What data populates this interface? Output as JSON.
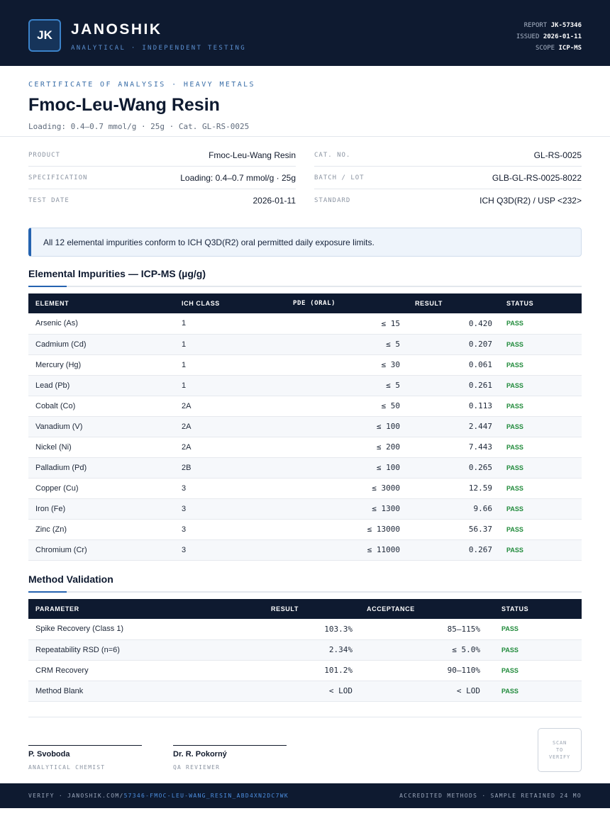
{
  "header": {
    "logo": "JK",
    "brand": "JANOSHIK",
    "tagline": "ANALYTICAL · INDEPENDENT TESTING",
    "report_label": "REPORT",
    "report_value": "JK-57346",
    "issued_label": "ISSUED",
    "issued_value": "2026-01-11",
    "scope_label": "SCOPE",
    "scope_value": "ICP-MS"
  },
  "doc": {
    "eyebrow": "CERTIFICATE OF ANALYSIS · HEAVY METALS",
    "title": "Fmoc-Leu-Wang Resin",
    "subtitle": "Loading: 0.4–0.7 mmol/g · 25g  ·  Cat. GL-RS-0025"
  },
  "info": {
    "product_label": "PRODUCT",
    "product_value": "Fmoc-Leu-Wang Resin",
    "spec_label": "SPECIFICATION",
    "spec_value": "Loading: 0.4–0.7 mmol/g · 25g",
    "date_label": "TEST DATE",
    "date_value": "2026-01-11",
    "cat_label": "CAT. NO.",
    "cat_value": "GL-RS-0025",
    "batch_label": "BATCH / LOT",
    "batch_value": "GLB-GL-RS-0025-8022",
    "standard_label": "STANDARD",
    "standard_value": "ICH Q3D(R2) / USP <232>"
  },
  "notice": "All 12 elemental impurities conform to ICH Q3D(R2) oral permitted daily exposure limits.",
  "impurities": {
    "title": "Elemental Impurities — ICP-MS (µg/g)",
    "headers": [
      "ELEMENT",
      "ICH CLASS",
      "PDE (ORAL)",
      "RESULT",
      "STATUS"
    ],
    "rows": [
      {
        "element": "Arsenic (As)",
        "class": "1",
        "pde": "≤ 15",
        "result": "0.420",
        "status": "PASS"
      },
      {
        "element": "Cadmium (Cd)",
        "class": "1",
        "pde": "≤ 5",
        "result": "0.207",
        "status": "PASS"
      },
      {
        "element": "Mercury (Hg)",
        "class": "1",
        "pde": "≤ 30",
        "result": "0.061",
        "status": "PASS"
      },
      {
        "element": "Lead (Pb)",
        "class": "1",
        "pde": "≤ 5",
        "result": "0.261",
        "status": "PASS"
      },
      {
        "element": "Cobalt (Co)",
        "class": "2A",
        "pde": "≤ 50",
        "result": "0.113",
        "status": "PASS"
      },
      {
        "element": "Vanadium (V)",
        "class": "2A",
        "pde": "≤ 100",
        "result": "2.447",
        "status": "PASS"
      },
      {
        "element": "Nickel (Ni)",
        "class": "2A",
        "pde": "≤ 200",
        "result": "7.443",
        "status": "PASS"
      },
      {
        "element": "Palladium (Pd)",
        "class": "2B",
        "pde": "≤ 100",
        "result": "0.265",
        "status": "PASS"
      },
      {
        "element": "Copper (Cu)",
        "class": "3",
        "pde": "≤ 3000",
        "result": "12.59",
        "status": "PASS"
      },
      {
        "element": "Iron (Fe)",
        "class": "3",
        "pde": "≤ 1300",
        "result": "9.66",
        "status": "PASS"
      },
      {
        "element": "Zinc (Zn)",
        "class": "3",
        "pde": "≤ 13000",
        "result": "56.37",
        "status": "PASS"
      },
      {
        "element": "Chromium (Cr)",
        "class": "3",
        "pde": "≤ 11000",
        "result": "0.267",
        "status": "PASS"
      }
    ]
  },
  "validation": {
    "title": "Method Validation",
    "headers": [
      "PARAMETER",
      "RESULT",
      "ACCEPTANCE",
      "STATUS"
    ],
    "rows": [
      {
        "parameter": "Spike Recovery (Class 1)",
        "result": "103.3%",
        "acceptance": "85–115%",
        "status": "PASS"
      },
      {
        "parameter": "Repeatability RSD (n=6)",
        "result": "2.34%",
        "acceptance": "≤ 5.0%",
        "status": "PASS"
      },
      {
        "parameter": "CRM Recovery",
        "result": "101.2%",
        "acceptance": "90–110%",
        "status": "PASS"
      },
      {
        "parameter": "Method Blank",
        "result": "< LOD",
        "acceptance": "< LOD",
        "status": "PASS"
      }
    ]
  },
  "signatures": [
    {
      "name": "P. Svoboda",
      "role": "ANALYTICAL CHEMIST"
    },
    {
      "name": "Dr. R. Pokorný",
      "role": "QA REVIEWER"
    }
  ],
  "qr": {
    "line1": "SCAN",
    "line2": "TO",
    "line3": "VERIFY"
  },
  "footer": {
    "verify_prefix": "VERIFY · JANOSHIK.COM/",
    "verify_path": "57346-FMOC-LEU-WANG_RESIN_ABD4XN2DC7WK",
    "right": "ACCREDITED METHODS · SAMPLE RETAINED 24 MO"
  },
  "colors": {
    "navy": "#0e1a30",
    "accent": "#2563b0",
    "pass": "#1f8a3a"
  }
}
